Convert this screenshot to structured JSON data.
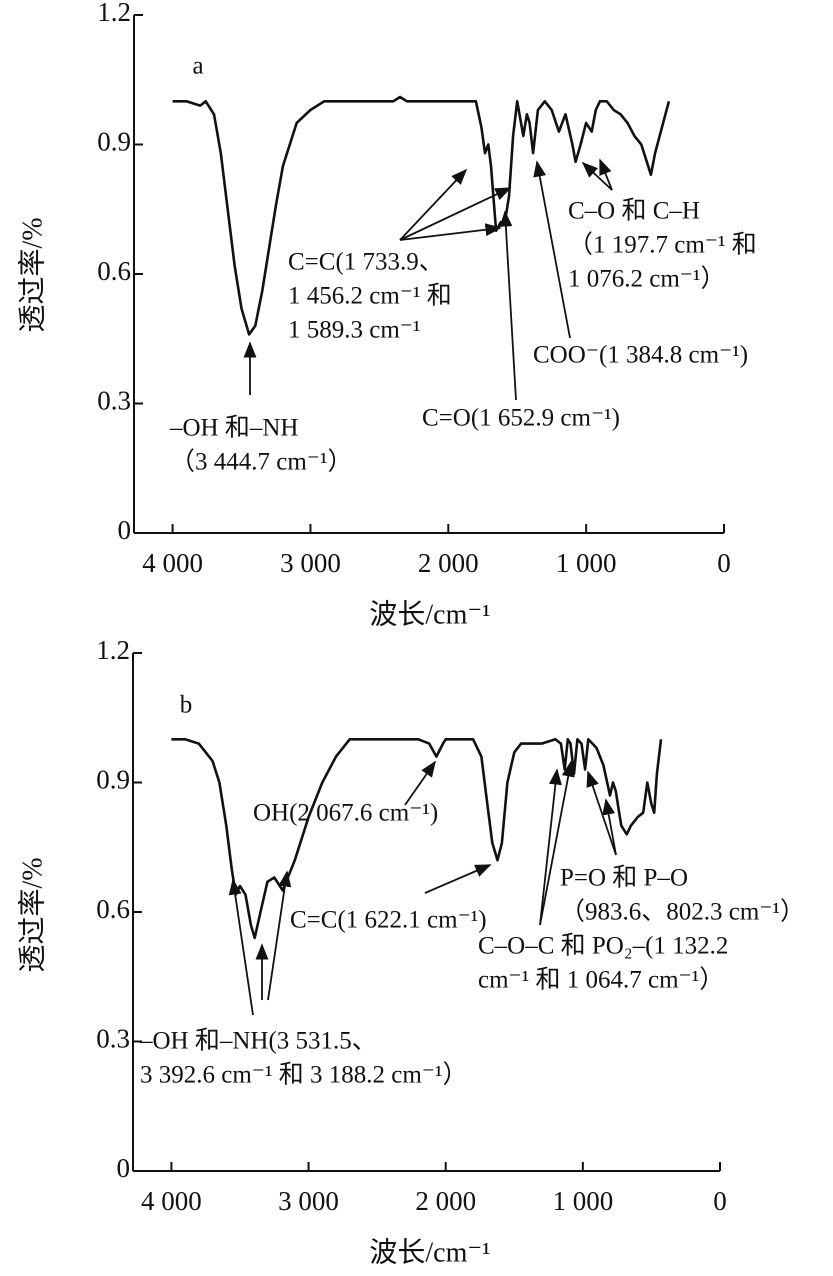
{
  "chart_data": [
    {
      "type": "line",
      "panel_label": "a",
      "xlabel": "波长/cm⁻¹",
      "ylabel": "透过率/%",
      "color": "#111111",
      "xlim": [
        4280,
        0
      ],
      "ylim": [
        0,
        1.2
      ],
      "xticks": [
        {
          "value": 4000,
          "label": "4 000"
        },
        {
          "value": 3000,
          "label": "3 000"
        },
        {
          "value": 2000,
          "label": "2 000"
        },
        {
          "value": 1000,
          "label": "1 000"
        },
        0
      ],
      "yticks": [
        0,
        0.3,
        0.6,
        0.9,
        1.2
      ],
      "x": [
        4000,
        3900,
        3800,
        3760,
        3700,
        3650,
        3600,
        3550,
        3500,
        3444.7,
        3400,
        3350,
        3300,
        3250,
        3200,
        3100,
        3000,
        2900,
        2800,
        2400,
        2350,
        2300,
        1800,
        1760,
        1733.9,
        1710,
        1690,
        1652.9,
        1620,
        1589.3,
        1560,
        1530,
        1500,
        1456.2,
        1430,
        1410,
        1384.8,
        1350,
        1300,
        1250,
        1197.7,
        1150,
        1100,
        1076.2,
        1040,
        1000,
        960,
        930,
        900,
        850,
        800,
        750,
        700,
        650,
        600,
        560,
        530,
        500,
        450,
        400
      ],
      "values": [
        1.0,
        1.0,
        0.99,
        1.0,
        0.97,
        0.88,
        0.75,
        0.62,
        0.52,
        0.46,
        0.48,
        0.56,
        0.66,
        0.76,
        0.85,
        0.95,
        0.98,
        1.0,
        1.0,
        1.0,
        1.01,
        1.0,
        1.0,
        0.94,
        0.88,
        0.9,
        0.85,
        0.7,
        0.72,
        0.72,
        0.78,
        0.92,
        1.0,
        0.92,
        0.97,
        0.95,
        0.88,
        0.98,
        1.0,
        0.98,
        0.93,
        0.97,
        0.9,
        0.86,
        0.9,
        0.95,
        0.93,
        0.98,
        1.0,
        1.0,
        0.98,
        0.97,
        0.95,
        0.92,
        0.9,
        0.86,
        0.83,
        0.88,
        0.94,
        1.0
      ],
      "annotations": [
        {
          "lines": [
            "C=C(1 733.9、",
            "1 456.2 cm⁻¹ 和",
            "1 589.3 cm⁻¹"
          ]
        },
        {
          "lines": [
            "–OH 和–NH",
            "（3 444.7 cm⁻¹）"
          ]
        },
        {
          "lines": [
            "C=O(1 652.9 cm⁻¹)"
          ]
        },
        {
          "lines": [
            "COO⁻(1 384.8 cm⁻¹)"
          ]
        },
        {
          "lines": [
            "C–O 和 C–H",
            "（1 197.7 cm⁻¹ 和",
            "1 076.2 cm⁻¹）"
          ]
        }
      ]
    },
    {
      "type": "line",
      "panel_label": "b",
      "xlabel": "波长/cm⁻¹",
      "ylabel": "透过率/%",
      "color": "#111111",
      "xlim": [
        4280,
        0
      ],
      "ylim": [
        0,
        1.2
      ],
      "xticks": [
        {
          "value": 4000,
          "label": "4 000"
        },
        {
          "value": 3000,
          "label": "3 000"
        },
        {
          "value": 2000,
          "label": "2 000"
        },
        {
          "value": 1000,
          "label": "1 000"
        },
        0
      ],
      "yticks": [
        0,
        0.3,
        0.6,
        0.9,
        1.2
      ],
      "x": [
        4000,
        3900,
        3800,
        3700,
        3650,
        3600,
        3560,
        3531.5,
        3500,
        3460,
        3420,
        3392.6,
        3350,
        3300,
        3250,
        3188.2,
        3100,
        3000,
        2900,
        2800,
        2700,
        2400,
        2200,
        2120,
        2067.6,
        2020,
        2000,
        1800,
        1740,
        1700,
        1660,
        1622.1,
        1590,
        1550,
        1500,
        1450,
        1300,
        1200,
        1160,
        1132.2,
        1110,
        1090,
        1064.7,
        1040,
        1010,
        983.6,
        960,
        930,
        900,
        850,
        802.3,
        780,
        760,
        740,
        720,
        680,
        650,
        600,
        560,
        530,
        500,
        480,
        460,
        430
      ],
      "values": [
        1.0,
        1.0,
        0.99,
        0.95,
        0.9,
        0.8,
        0.7,
        0.64,
        0.66,
        0.64,
        0.57,
        0.54,
        0.6,
        0.67,
        0.68,
        0.65,
        0.72,
        0.82,
        0.9,
        0.96,
        1.0,
        1.0,
        1.0,
        0.99,
        0.96,
        0.99,
        1.0,
        1.0,
        0.96,
        0.86,
        0.76,
        0.72,
        0.76,
        0.9,
        0.97,
        0.99,
        0.99,
        1.0,
        0.99,
        0.93,
        1.0,
        0.99,
        0.92,
        1.0,
        0.99,
        0.93,
        1.0,
        0.99,
        0.98,
        0.94,
        0.87,
        0.9,
        0.88,
        0.84,
        0.8,
        0.78,
        0.8,
        0.82,
        0.83,
        0.9,
        0.85,
        0.83,
        0.92,
        1.0
      ],
      "annotations": [
        {
          "lines": [
            "OH(2 067.6 cm⁻¹)"
          ]
        },
        {
          "lines": [
            "C=C(1 622.1 cm⁻¹)"
          ]
        },
        {
          "lines": [
            "P=O 和 P–O",
            "（983.6、802.3 cm⁻¹）"
          ]
        },
        {
          "lines": [
            "C–O–C 和 PO₂–(1 132.2",
            "cm⁻¹ 和 1 064.7 cm⁻¹）"
          ]
        },
        {
          "lines": [
            "–OH 和–NH(3 531.5、",
            "3 392.6 cm⁻¹ 和 3 188.2 cm⁻¹）"
          ]
        }
      ]
    }
  ]
}
